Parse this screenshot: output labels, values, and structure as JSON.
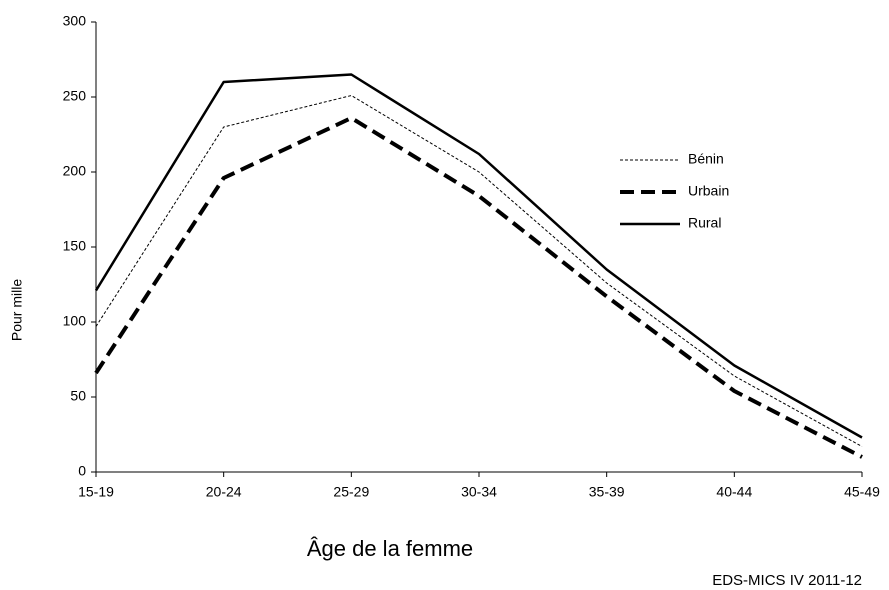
{
  "chart_data": {
    "type": "line",
    "x_label": "Âge de la femme",
    "y_label": "Pour mille",
    "source": "EDS-MICS IV 2011-12",
    "categories": [
      "15-19",
      "20-24",
      "25-29",
      "30-34",
      "35-39",
      "40-44",
      "45-49"
    ],
    "series": [
      {
        "name": "Bénin",
        "color": "#000000",
        "linestyle": "short-dash",
        "values": [
          97,
          230,
          251,
          200,
          126,
          64,
          17
        ]
      },
      {
        "name": "Urbain",
        "color": "#000000",
        "linestyle": "long-dash",
        "values": [
          66,
          196,
          236,
          184,
          117,
          54,
          10
        ]
      },
      {
        "name": "Rural",
        "color": "#000000",
        "linestyle": "solid",
        "values": [
          121,
          260,
          265,
          212,
          135,
          71,
          23
        ]
      }
    ],
    "ylim": [
      0,
      300
    ],
    "yticks": [
      0,
      50,
      100,
      150,
      200,
      250,
      300
    ],
    "grid": false,
    "legend": "right"
  }
}
